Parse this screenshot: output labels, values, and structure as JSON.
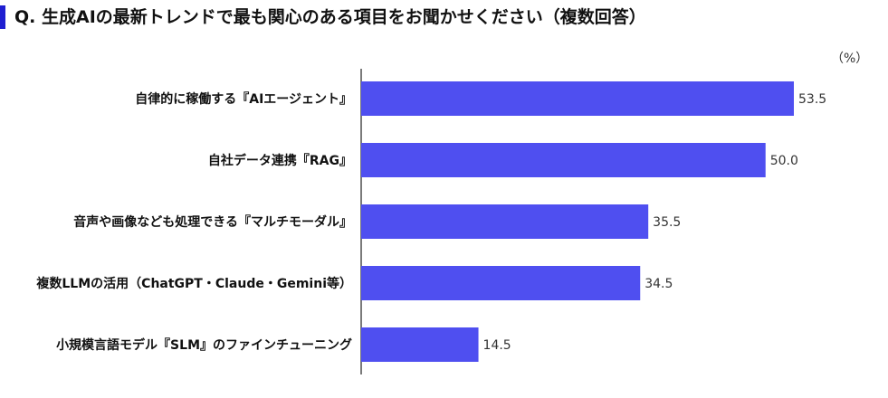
{
  "title": "Q. 生成AIの最新トレンドで最も関心のある項目をお聞かせください（複数回答）",
  "colors": {
    "bar": "#4f4ff0",
    "accent": "#1f1fd1",
    "axis": "#222222"
  },
  "chart_data": {
    "type": "bar",
    "orientation": "horizontal",
    "unit": "（%）",
    "categories": [
      "自律的に稼働する『AIエージェント』",
      "自社データ連携『RAG』",
      "音声や画像なども処理できる『マルチモーダル』",
      "複数LLMの活用（ChatGPT・Claude・Gemini等）",
      "小規模言語モデル『SLM』のファインチューニング"
    ],
    "values": [
      53.5,
      50.0,
      35.5,
      34.5,
      14.5
    ],
    "value_labels": [
      "53.5",
      "50.0",
      "35.5",
      "34.5",
      "14.5"
    ],
    "xlim": [
      0,
      58
    ]
  }
}
